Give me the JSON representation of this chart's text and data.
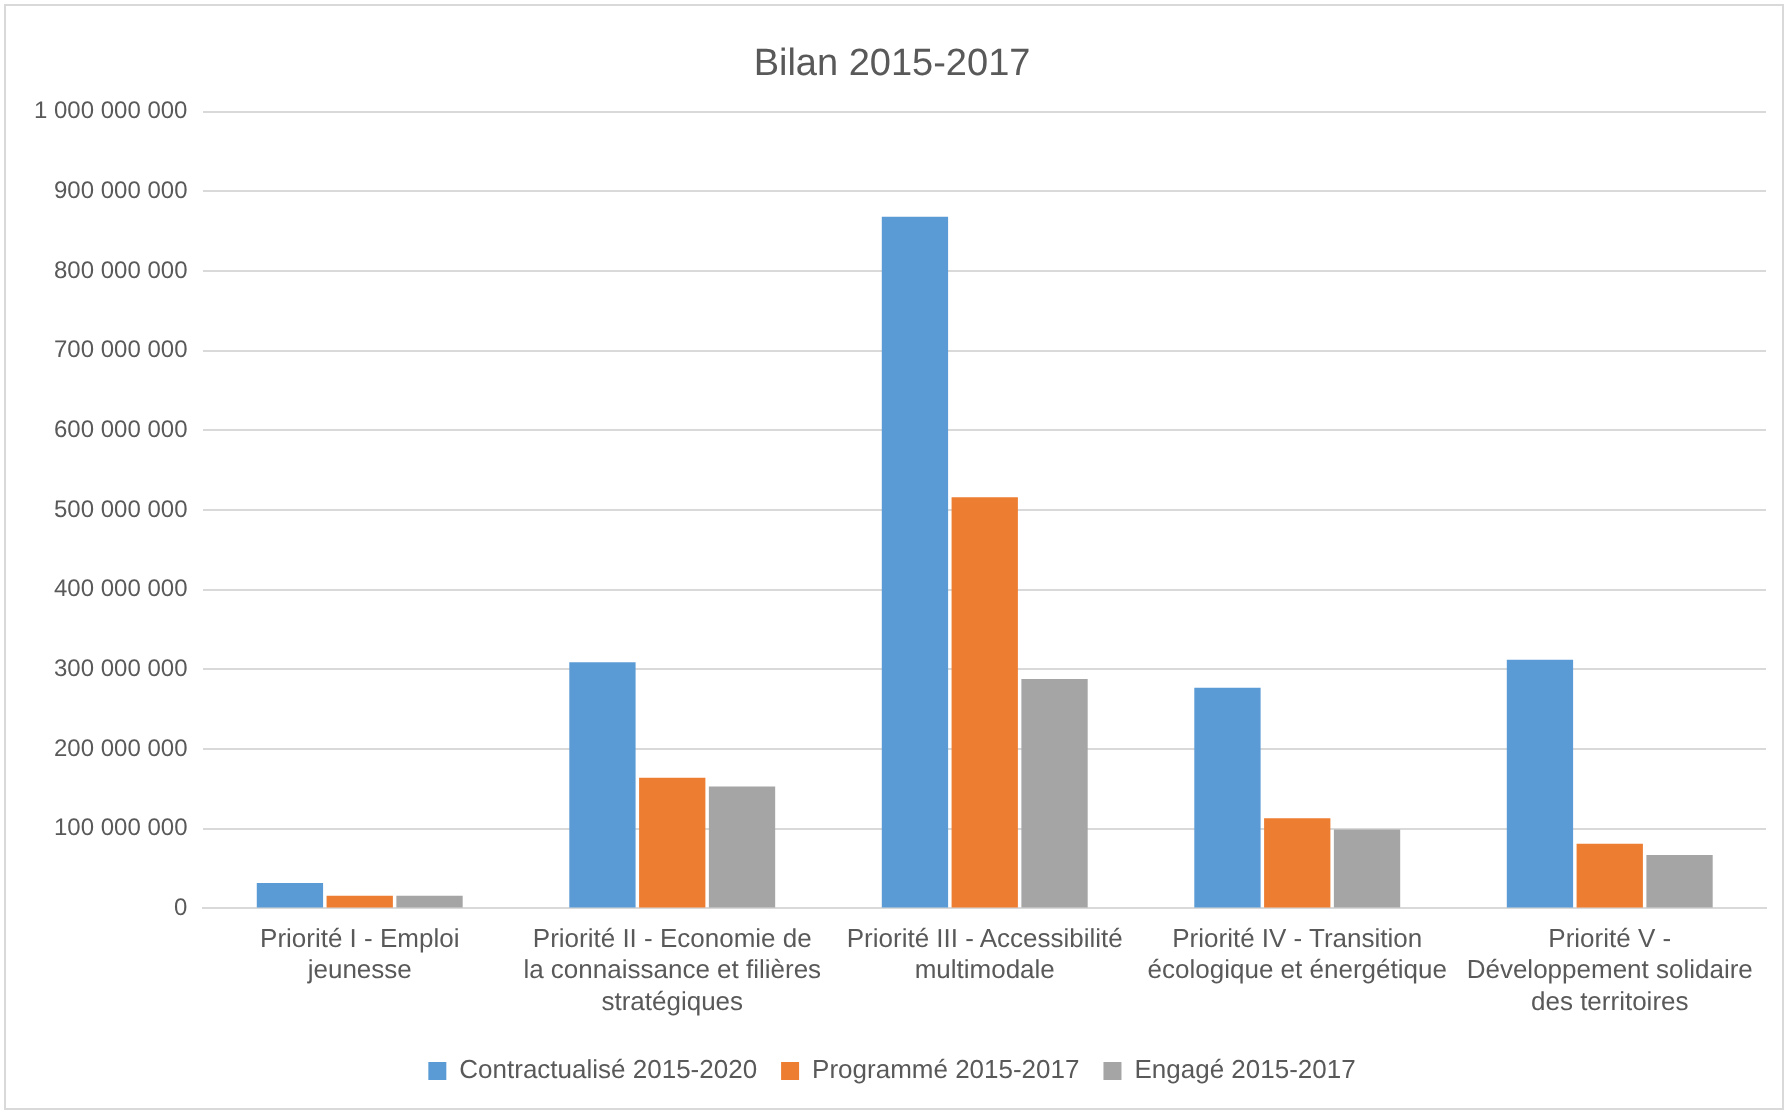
{
  "chart_data": {
    "type": "bar",
    "title": "Bilan 2015-2017",
    "categories": [
      "Priorité I - Emploi jeunesse",
      "Priorité II - Economie de la connaissance et filières stratégiques",
      "Priorité III - Accessibilité multimodale",
      "Priorité IV - Transition écologique et énergétique",
      "Priorité V - Développement solidaire des territoires"
    ],
    "series": [
      {
        "name": "Contractualisé 2015-2020",
        "color": "#5b9bd5",
        "values": [
          32000000,
          309000000,
          868000000,
          277000000,
          312000000
        ]
      },
      {
        "name": "Programmé 2015-2017",
        "color": "#ed7d31",
        "values": [
          16000000,
          164000000,
          516000000,
          113000000,
          81000000
        ]
      },
      {
        "name": "Engagé 2015-2017",
        "color": "#a5a5a5",
        "values": [
          16000000,
          153000000,
          288000000,
          99000000,
          67000000
        ]
      }
    ],
    "ylim": [
      0,
      1000000000
    ],
    "yticks": [
      {
        "value": 0,
        "label": "0"
      },
      {
        "value": 100000000,
        "label": "100 000 000"
      },
      {
        "value": 200000000,
        "label": "200 000 000"
      },
      {
        "value": 300000000,
        "label": "300 000 000"
      },
      {
        "value": 400000000,
        "label": "400 000 000"
      },
      {
        "value": 500000000,
        "label": "500 000 000"
      },
      {
        "value": 600000000,
        "label": "600 000 000"
      },
      {
        "value": 700000000,
        "label": "700 000 000"
      },
      {
        "value": 800000000,
        "label": "800 000 000"
      },
      {
        "value": 900000000,
        "label": "900 000 000"
      },
      {
        "value": 1000000000,
        "label": "1 000 000 000"
      }
    ],
    "grid": "y",
    "legend": "bottom"
  }
}
